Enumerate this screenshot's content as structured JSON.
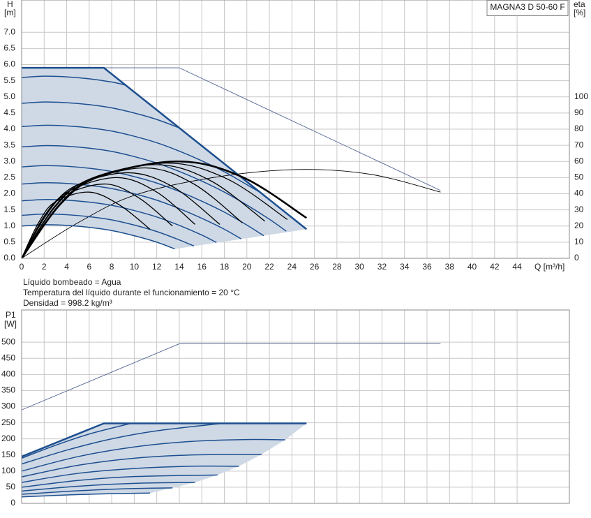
{
  "chart_data": [
    {
      "type": "line",
      "title": "MAGNA3 D 50-60 F",
      "y_label": "H",
      "y_unit": "[m]",
      "y2_label": "eta",
      "y2_unit": "[%]",
      "x_label": "Q [m³/h]",
      "annotations": [
        "Líquido bombeado = Agua",
        "Temperatura del líquido durante el funcionamiento = 20 °C",
        "Densidad = 998.2 kg/m³"
      ],
      "xlim": [
        0,
        48.64
      ],
      "xticks": [
        0,
        2,
        4,
        6,
        8,
        10,
        12,
        14,
        16,
        18,
        20,
        22,
        24,
        26,
        28,
        30,
        32,
        34,
        36,
        38,
        40,
        42,
        44
      ],
      "xtick_labels": true,
      "ylim": [
        0,
        8
      ],
      "yticks": [
        {
          "value": 0,
          "label": "0.0"
        },
        {
          "value": 0.5,
          "label": "0.5"
        },
        {
          "value": 1,
          "label": "1.0"
        },
        {
          "value": 1.5,
          "label": "1.5"
        },
        {
          "value": 2,
          "label": "2.0"
        },
        {
          "value": 2.5,
          "label": "2.5"
        },
        {
          "value": 3,
          "label": "3.0"
        },
        {
          "value": 3.5,
          "label": "3.5"
        },
        {
          "value": 4,
          "label": "4.0"
        },
        {
          "value": 4.5,
          "label": "4.5"
        },
        {
          "value": 5,
          "label": "5.0"
        },
        {
          "value": 5.5,
          "label": "5.5"
        },
        {
          "value": 6,
          "label": "6.0"
        },
        {
          "value": 6.5,
          "label": "6.5"
        },
        {
          "value": 7,
          "label": "7.0"
        }
      ],
      "y2lim": [
        0,
        160
      ],
      "y2ticks": [
        0,
        10,
        20,
        30,
        40,
        50,
        60,
        70,
        80,
        90,
        100
      ],
      "grid": true,
      "region": {
        "color": "#cfd9e6",
        "x": [
          0,
          7.3,
          25.3,
          13.6,
          12,
          8,
          4,
          0
        ],
        "values": [
          5.9,
          5.9,
          0.9,
          0.29,
          0.5,
          0.86,
          1.02,
          1.0
        ]
      },
      "series": [
        {
          "color": "#4f6290",
          "linewidth": 0.9,
          "smooth": false,
          "x": [
            0,
            14,
            37.2
          ],
          "values": [
            5.9,
            5.9,
            2.1
          ]
        },
        {
          "color": "#000000",
          "linewidth": 0.9,
          "smooth": true,
          "axis": "y2",
          "x": [
            0,
            5,
            10,
            17,
            24.5,
            31,
            37.2
          ],
          "values": [
            0,
            22,
            39,
            50,
            55,
            52,
            41
          ]
        },
        {
          "color": "#1d4f8f",
          "linewidth": 2.5,
          "smooth": false,
          "x": [
            0,
            7.3,
            25.3
          ],
          "values": [
            5.9,
            5.9,
            0.9
          ]
        },
        {
          "color": "#1d4f8f",
          "linewidth": 1.5,
          "smooth": true,
          "x": [
            0,
            2,
            4,
            6,
            8,
            9.3
          ],
          "values": [
            5.6,
            5.64,
            5.62,
            5.56,
            5.46,
            5.36
          ]
        },
        {
          "color": "#1d4f8f",
          "linewidth": 1.5,
          "smooth": true,
          "x": [
            0,
            2,
            4,
            6,
            8,
            10,
            12,
            14
          ],
          "values": [
            4.8,
            4.84,
            4.82,
            4.76,
            4.66,
            4.5,
            4.3,
            4.04
          ]
        },
        {
          "color": "#1d4f8f",
          "linewidth": 1.5,
          "smooth": true,
          "x": [
            0,
            2,
            4,
            6,
            8,
            10,
            12,
            14,
            16,
            18,
            20,
            21
          ],
          "values": [
            4.08,
            4.12,
            4.1,
            4.04,
            3.94,
            3.78,
            3.58,
            3.32,
            3.02,
            2.68,
            2.28,
            2.08
          ]
        },
        {
          "color": "#1d4f8f",
          "linewidth": 1.5,
          "smooth": true,
          "x": [
            0,
            2,
            4,
            6,
            8,
            10,
            12,
            14,
            16,
            18,
            20,
            22,
            23.5
          ],
          "values": [
            3.45,
            3.49,
            3.47,
            3.41,
            3.31,
            3.15,
            2.95,
            2.69,
            2.39,
            2.05,
            1.65,
            1.21,
            0.84
          ]
        },
        {
          "color": "#1d4f8f",
          "linewidth": 1.5,
          "smooth": true,
          "x": [
            0,
            2,
            4,
            6,
            8,
            10,
            12,
            14,
            16,
            18,
            20,
            21.5
          ],
          "values": [
            2.83,
            2.87,
            2.85,
            2.79,
            2.69,
            2.53,
            2.33,
            2.07,
            1.77,
            1.43,
            1.03,
            0.7
          ]
        },
        {
          "color": "#1d4f8f",
          "linewidth": 1.5,
          "smooth": true,
          "x": [
            0,
            2,
            4,
            6,
            8,
            10,
            12,
            14,
            16,
            18,
            19.5
          ],
          "values": [
            2.3,
            2.34,
            2.32,
            2.26,
            2.16,
            2.0,
            1.8,
            1.54,
            1.24,
            0.9,
            0.6
          ]
        },
        {
          "color": "#1d4f8f",
          "linewidth": 1.5,
          "smooth": true,
          "x": [
            0,
            2,
            4,
            6,
            8,
            10,
            12,
            14,
            16,
            17.3
          ],
          "values": [
            1.78,
            1.82,
            1.8,
            1.74,
            1.64,
            1.48,
            1.28,
            1.02,
            0.72,
            0.49
          ]
        },
        {
          "color": "#1d4f8f",
          "linewidth": 1.5,
          "smooth": true,
          "x": [
            0,
            2,
            4,
            6,
            8,
            10,
            12,
            14,
            15.3
          ],
          "values": [
            1.33,
            1.37,
            1.35,
            1.29,
            1.19,
            1.03,
            0.83,
            0.57,
            0.38
          ]
        },
        {
          "color": "#1d4f8f",
          "linewidth": 1.5,
          "smooth": true,
          "x": [
            0,
            2,
            4,
            6,
            8,
            10,
            12,
            13.6
          ],
          "values": [
            1.0,
            1.04,
            1.02,
            0.96,
            0.86,
            0.7,
            0.5,
            0.29
          ]
        },
        {
          "color": "#000000",
          "linewidth": 1.3,
          "smooth": true,
          "axis": "y2",
          "x": [
            0,
            1.5,
            3,
            6,
            8.7,
            11.4
          ],
          "values": [
            0,
            22,
            35,
            41,
            33,
            18
          ]
        },
        {
          "color": "#000000",
          "linewidth": 1.3,
          "smooth": true,
          "axis": "y2",
          "x": [
            0,
            1.9,
            3.8,
            7.5,
            10.5,
            13.4
          ],
          "values": [
            0,
            25,
            39,
            46,
            37,
            20
          ]
        },
        {
          "color": "#000000",
          "linewidth": 1.3,
          "smooth": true,
          "axis": "y2",
          "x": [
            0,
            2.1,
            4.3,
            8.5,
            12,
            15.4
          ],
          "values": [
            0,
            27,
            42,
            50,
            41,
            21
          ]
        },
        {
          "color": "#000000",
          "linewidth": 1.3,
          "smooth": true,
          "axis": "y2",
          "x": [
            0,
            2.4,
            4.8,
            9.5,
            13.5,
            17.6
          ],
          "values": [
            0,
            29,
            45,
            53,
            44,
            21
          ]
        },
        {
          "color": "#000000",
          "linewidth": 1.3,
          "smooth": true,
          "axis": "y2",
          "x": [
            0,
            2.8,
            5.5,
            11,
            15.3,
            19.6
          ],
          "values": [
            0,
            31,
            47,
            56,
            46,
            22
          ]
        },
        {
          "color": "#000000",
          "linewidth": 1.3,
          "smooth": true,
          "axis": "y2",
          "x": [
            0,
            3,
            6,
            12,
            16.8,
            21.6
          ],
          "values": [
            0,
            32,
            49,
            58,
            48,
            23
          ]
        },
        {
          "color": "#000000",
          "linewidth": 1.3,
          "smooth": true,
          "axis": "y2",
          "x": [
            0,
            3.3,
            6.5,
            13,
            18.3,
            23.6
          ],
          "values": [
            0,
            33,
            50,
            59,
            49,
            24
          ]
        },
        {
          "color": "#000000",
          "linewidth": 2.6,
          "smooth": true,
          "axis": "y2",
          "x": [
            0,
            3.5,
            7,
            14,
            19.7,
            25.3
          ],
          "values": [
            0,
            34,
            51,
            60,
            50,
            25
          ]
        }
      ]
    },
    {
      "type": "line",
      "y_label": "P1",
      "y_unit": "[W]",
      "xlim": [
        0,
        48.64
      ],
      "xticks": [
        0,
        2,
        4,
        6,
        8,
        10,
        12,
        14,
        16,
        18,
        20,
        22,
        24,
        26,
        28,
        30,
        32,
        34,
        36,
        38,
        40,
        42,
        44
      ],
      "xtick_labels": false,
      "ylim": [
        0,
        600
      ],
      "yticks": [
        0,
        50,
        100,
        150,
        200,
        250,
        300,
        350,
        400,
        450,
        500
      ],
      "grid": true,
      "region": {
        "color": "#cfd9e6",
        "x": [
          0,
          7.3,
          25.3,
          23.4,
          21.3,
          19.3,
          17.4,
          15.4,
          13.4,
          11.4,
          8,
          4,
          0
        ],
        "values": [
          145,
          248,
          248,
          197,
          152,
          115,
          88,
          65,
          48,
          32,
          30,
          26,
          20
        ]
      },
      "series": [
        {
          "color": "#4f6290",
          "linewidth": 0.9,
          "smooth": false,
          "x": [
            0,
            14,
            37.2
          ],
          "values": [
            290,
            495,
            495
          ]
        },
        {
          "color": "#1d4f8f",
          "linewidth": 2.5,
          "smooth": false,
          "x": [
            0,
            7.3,
            25.3
          ],
          "values": [
            145,
            248,
            248
          ]
        },
        {
          "color": "#1d4f8f",
          "linewidth": 1.5,
          "smooth": true,
          "x": [
            0,
            3,
            6,
            9.7
          ],
          "values": [
            140,
            180,
            215,
            248
          ]
        },
        {
          "color": "#1d4f8f",
          "linewidth": 1.5,
          "smooth": true,
          "x": [
            0,
            4,
            8,
            12,
            17.8
          ],
          "values": [
            122,
            165,
            200,
            225,
            248
          ]
        },
        {
          "color": "#1d4f8f",
          "linewidth": 1.5,
          "smooth": true,
          "x": [
            0,
            5,
            10,
            15,
            20,
            23.4
          ],
          "values": [
            100,
            145,
            175,
            192,
            198,
            197
          ]
        },
        {
          "color": "#1d4f8f",
          "linewidth": 1.5,
          "smooth": true,
          "x": [
            0,
            5,
            10,
            15,
            21.3
          ],
          "values": [
            82,
            118,
            140,
            150,
            152
          ]
        },
        {
          "color": "#1d4f8f",
          "linewidth": 1.5,
          "smooth": true,
          "x": [
            0,
            5,
            10,
            15,
            19.3
          ],
          "values": [
            65,
            93,
            108,
            115,
            115
          ]
        },
        {
          "color": "#1d4f8f",
          "linewidth": 1.5,
          "smooth": true,
          "x": [
            0,
            5,
            10,
            17.4
          ],
          "values": [
            50,
            71,
            83,
            88
          ]
        },
        {
          "color": "#1d4f8f",
          "linewidth": 1.5,
          "smooth": true,
          "x": [
            0,
            5,
            10,
            15.4
          ],
          "values": [
            38,
            53,
            62,
            65
          ]
        },
        {
          "color": "#1d4f8f",
          "linewidth": 1.5,
          "smooth": true,
          "x": [
            0,
            5,
            10,
            13.4
          ],
          "values": [
            28,
            39,
            46,
            48
          ]
        },
        {
          "color": "#1d4f8f",
          "linewidth": 1.5,
          "smooth": true,
          "x": [
            0,
            4,
            8,
            11.4
          ],
          "values": [
            20,
            26,
            30,
            32
          ]
        }
      ]
    }
  ]
}
